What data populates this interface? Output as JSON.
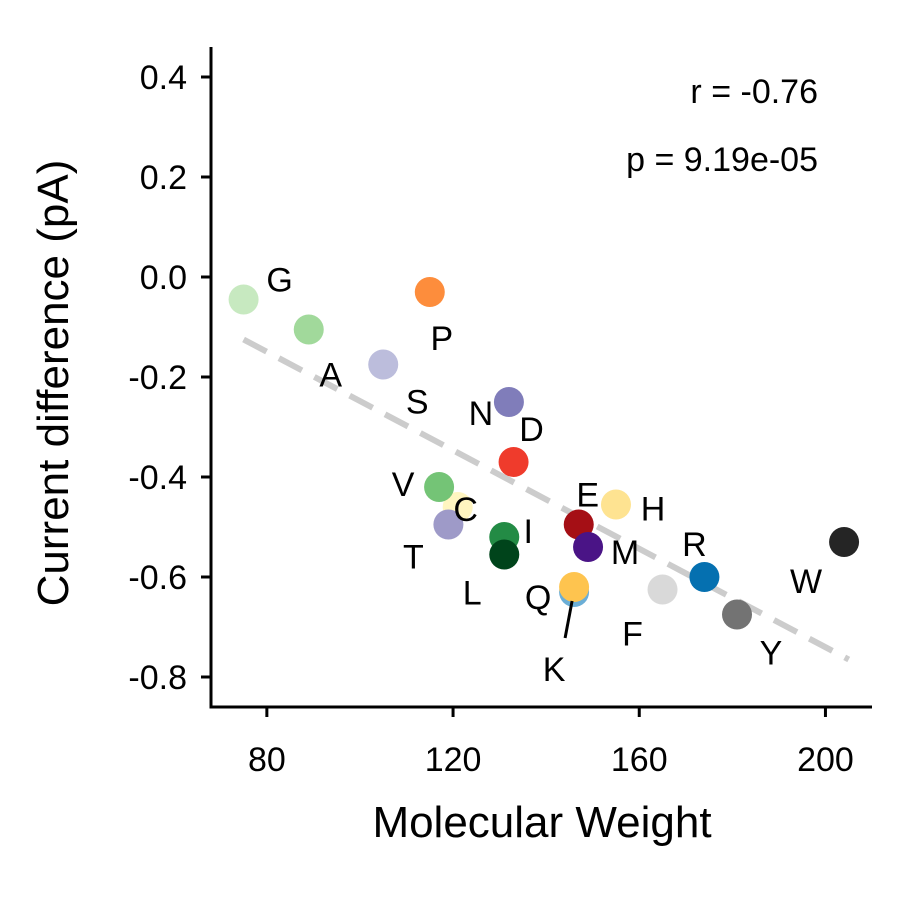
{
  "chart_data": {
    "type": "scatter",
    "title": "",
    "xlabel": "Molecular Weight",
    "ylabel": "Current difference (pA)",
    "xlim": [
      68,
      210
    ],
    "ylim": [
      -0.86,
      0.46
    ],
    "xticks": [
      80,
      120,
      160,
      200
    ],
    "yticks": [
      0.4,
      0.2,
      0.0,
      -0.2,
      -0.4,
      -0.6,
      -0.8
    ],
    "ytick_labels": [
      "0.4",
      "0.2",
      "0.0",
      "-0.2",
      "-0.4",
      "-0.6",
      "-0.8"
    ],
    "grid": false,
    "stats": {
      "r": "r = -0.76",
      "p": "p = 9.19e-05"
    },
    "trendline": {
      "x": [
        75,
        205
      ],
      "y": [
        -0.125,
        -0.765
      ],
      "style": "dashed",
      "color": "#cccccc"
    },
    "points": [
      {
        "label": "G",
        "x": 75,
        "y": -0.045,
        "color": "#c7e9c0"
      },
      {
        "label": "A",
        "x": 89,
        "y": -0.105,
        "color": "#a1d99b"
      },
      {
        "label": "P",
        "x": 115,
        "y": -0.03,
        "color": "#fd8d3c"
      },
      {
        "label": "S",
        "x": 105,
        "y": -0.175,
        "color": "#bcbddc"
      },
      {
        "label": "N",
        "x": 132,
        "y": -0.25,
        "color": "#807dba"
      },
      {
        "label": "D",
        "x": 133,
        "y": -0.37,
        "color": "#ef3b2c"
      },
      {
        "label": "C",
        "x": 121,
        "y": -0.46,
        "color": "#fff5c0"
      },
      {
        "label": "V",
        "x": 117,
        "y": -0.42,
        "color": "#74c476"
      },
      {
        "label": "T",
        "x": 119,
        "y": -0.495,
        "color": "#9e9ac8"
      },
      {
        "label": "I",
        "x": 131,
        "y": -0.52,
        "color": "#238b45"
      },
      {
        "label": "L",
        "x": 131,
        "y": -0.555,
        "color": "#00441b"
      },
      {
        "label": "E",
        "x": 147,
        "y": -0.495,
        "color": "#a50f15"
      },
      {
        "label": "M",
        "x": 149,
        "y": -0.54,
        "color": "#4a1486"
      },
      {
        "label": "H",
        "x": 155,
        "y": -0.455,
        "color": "#fee391"
      },
      {
        "label": "Q",
        "x": 146,
        "y": -0.63,
        "color": "#6baed6"
      },
      {
        "label": "K",
        "x": 146,
        "y": -0.62,
        "color": "#fec44f"
      },
      {
        "label": "F",
        "x": 165,
        "y": -0.625,
        "color": "#d9d9d9"
      },
      {
        "label": "R",
        "x": 174,
        "y": -0.6,
        "color": "#0570b0"
      },
      {
        "label": "Y",
        "x": 181,
        "y": -0.675,
        "color": "#737373"
      },
      {
        "label": "W",
        "x": 204,
        "y": -0.53,
        "color": "#252525"
      }
    ]
  }
}
